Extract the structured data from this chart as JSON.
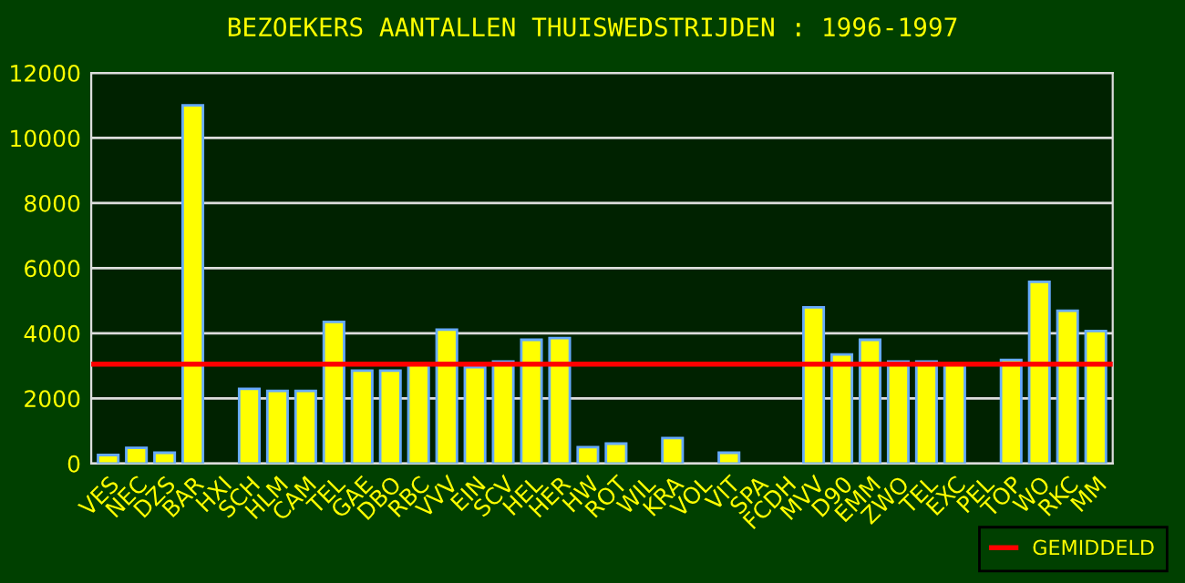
{
  "chart_data": {
    "type": "bar",
    "title": "BEZOEKERS AANTALLEN THUISWEDSTRIJDEN : 1996-1997",
    "categories": [
      "VES",
      "NEC",
      "DZS",
      "BAR",
      "HXI",
      "SCH",
      "HLM",
      "CAM",
      "TEL",
      "GAE",
      "DBO",
      "RBC",
      "VVV",
      "EIN",
      "SCV",
      "HEL",
      "HER",
      "HW",
      "ROT",
      "WIL",
      "KRA",
      "VOL",
      "VIT",
      "SPA",
      "FCDH",
      "MVV",
      "D90",
      "EMM",
      "ZWO",
      "TEL",
      "EXC",
      "PEL",
      "TOP",
      "WO",
      "RKC",
      "MM"
    ],
    "values": [
      260,
      480,
      330,
      11000,
      null,
      2290,
      2230,
      2230,
      4350,
      2850,
      2850,
      3050,
      4110,
      2960,
      3130,
      3800,
      3850,
      500,
      610,
      null,
      780,
      null,
      330,
      null,
      null,
      4800,
      3350,
      3800,
      3130,
      3130,
      3030,
      null,
      3180,
      5580,
      4690,
      4070
    ],
    "color": "#ffff00",
    "ylim": [
      0,
      12000
    ],
    "yticks": [
      0,
      2000,
      4000,
      6000,
      8000,
      10000,
      12000
    ],
    "grid": "y",
    "ref_lines": [
      {
        "axis": "y",
        "value": 3050,
        "label": "GEMIDDELD",
        "color": "#ff0000"
      }
    ],
    "legend": "bottom right"
  }
}
